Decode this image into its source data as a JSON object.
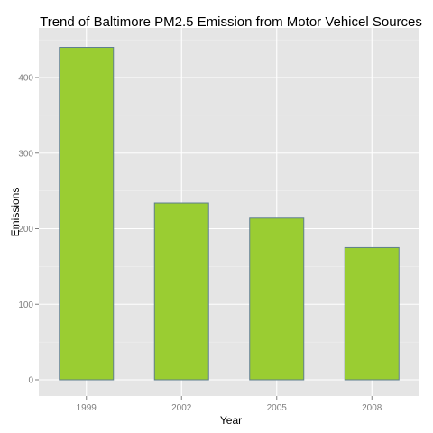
{
  "chart_data": {
    "type": "bar",
    "title": "Trend of Baltimore PM2.5 Emission from Motor Vehicel Sources",
    "xlabel": "Year",
    "ylabel": "Emissions",
    "categories": [
      "1999",
      "2002",
      "2005",
      "2008"
    ],
    "values": [
      440,
      234,
      214,
      175
    ],
    "ylim": [
      0,
      460
    ],
    "yticks": [
      0,
      100,
      200,
      300,
      400
    ],
    "grid": true,
    "legend": "none",
    "colors": {
      "bar_fill": "#9acd32",
      "bar_stroke": "#5f7f8f",
      "panel_bg": "#e5e5e5",
      "grid_major": "#ffffff",
      "grid_minor": "#f2f2f2"
    }
  }
}
